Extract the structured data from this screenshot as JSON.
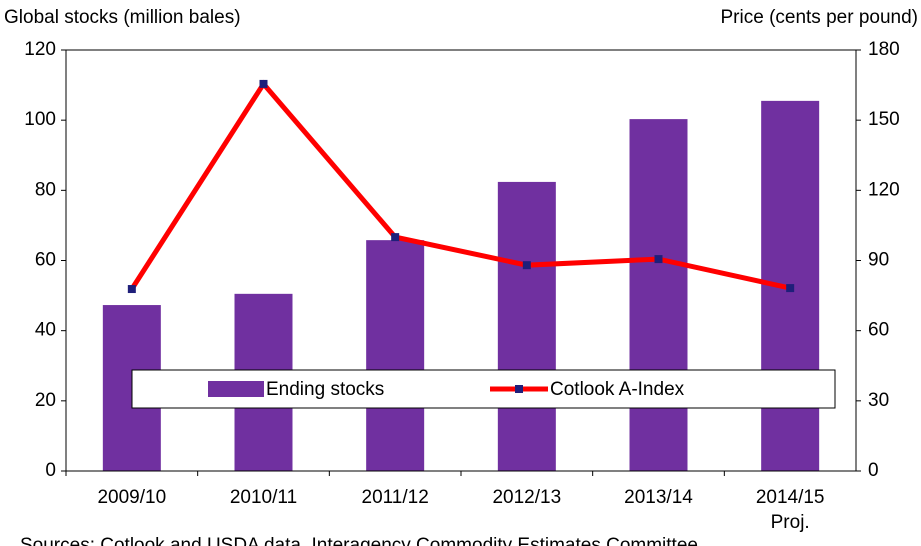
{
  "chart_data": {
    "type": "bar-line",
    "y_label": "Global stocks (million bales)",
    "y2_label": "Price (cents per pound)",
    "categories": [
      "2009/10",
      "2010/11",
      "2011/12",
      "2012/13",
      "2013/14",
      "2014/15"
    ],
    "category_note": "Proj.",
    "series": [
      {
        "name": "Ending stocks",
        "type": "bar",
        "color": "#7030a0",
        "values": [
          47.3,
          50.5,
          65.8,
          82.4,
          100.3,
          105.5
        ]
      },
      {
        "name": "Cotlook A-Index",
        "type": "line",
        "axis": "y2",
        "color": "#ff0000",
        "marker_color": "#1f1f7a",
        "values": [
          77.8,
          165.5,
          100,
          88,
          90.6,
          78.2
        ]
      }
    ],
    "ylim": [
      0,
      120
    ],
    "yticks": [
      0,
      20,
      40,
      60,
      80,
      100,
      120
    ],
    "y2lim": [
      0,
      180
    ],
    "y2ticks": [
      0,
      30,
      60,
      90,
      120,
      150,
      180
    ],
    "source": "Sources: Cotlook and USDA data, Interagency Commodity Estimates Committee"
  }
}
